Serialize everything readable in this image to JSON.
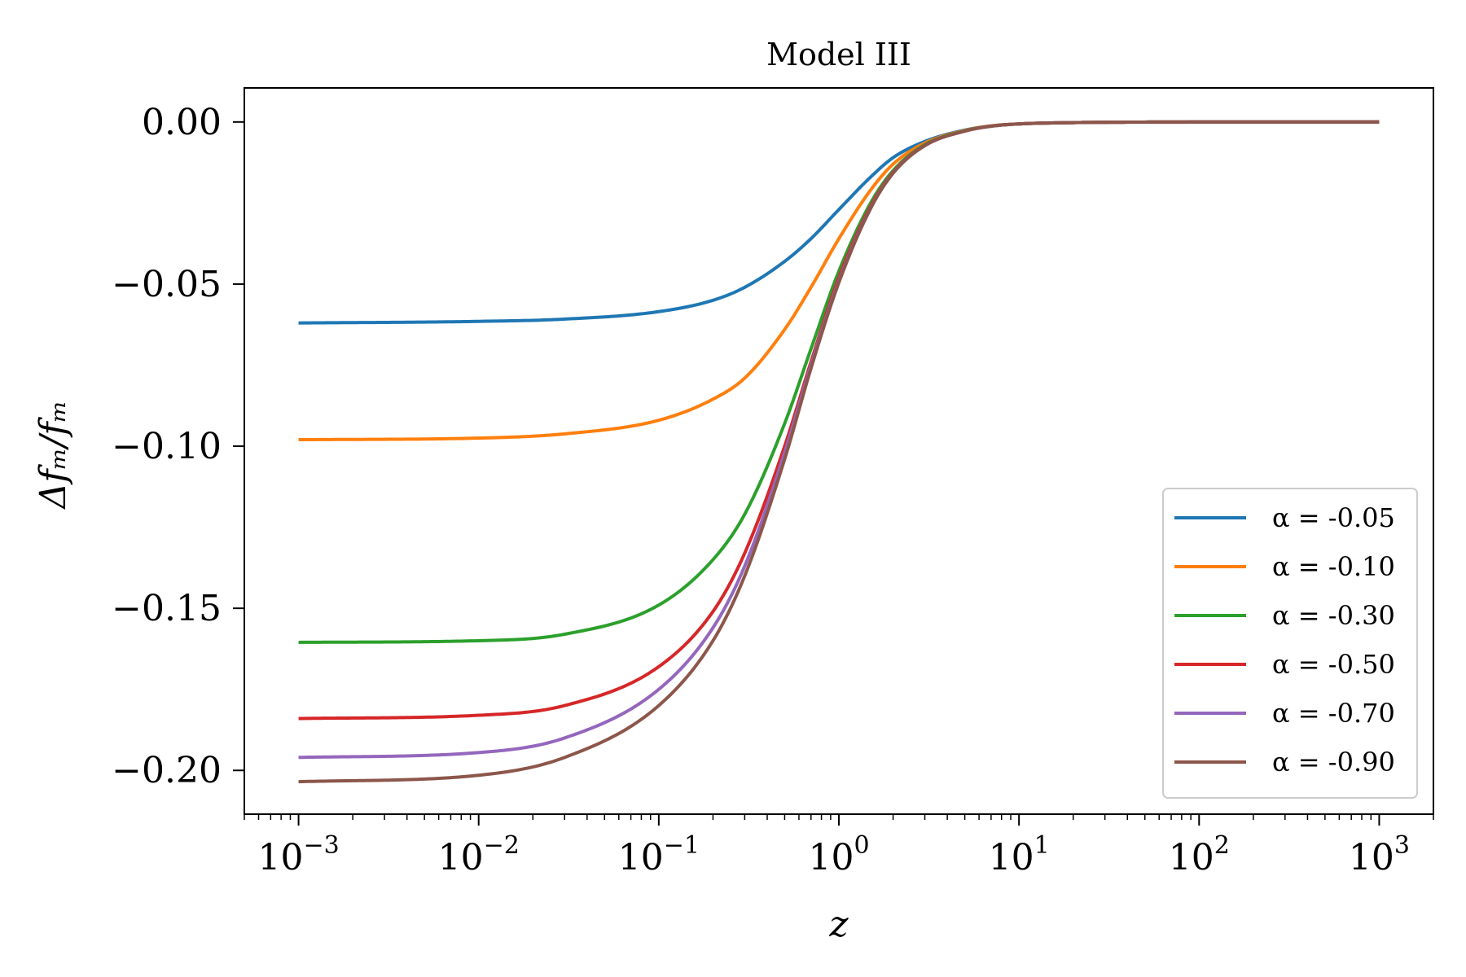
{
  "chart_data": {
    "type": "line",
    "title": "Model III",
    "xlabel": "z",
    "ylabel": "Δfₘ/fₘ",
    "xscale": "log",
    "xlim": [
      0.0005,
      2000
    ],
    "ylim": [
      -0.2135,
      0.0105
    ],
    "x_ticks": [
      {
        "value": 0.001,
        "base": "10",
        "exp": "−3"
      },
      {
        "value": 0.01,
        "base": "10",
        "exp": "−2"
      },
      {
        "value": 0.1,
        "base": "10",
        "exp": "−1"
      },
      {
        "value": 1,
        "base": "10",
        "exp": "0"
      },
      {
        "value": 10,
        "base": "10",
        "exp": "1"
      },
      {
        "value": 100,
        "base": "10",
        "exp": "2"
      },
      {
        "value": 1000,
        "base": "10",
        "exp": "3"
      }
    ],
    "y_ticks": [
      {
        "value": 0.0,
        "label": "0.00"
      },
      {
        "value": -0.05,
        "label": "−0.05"
      },
      {
        "value": -0.1,
        "label": "−0.10"
      },
      {
        "value": -0.15,
        "label": "−0.15"
      },
      {
        "value": -0.2,
        "label": "−0.20"
      }
    ],
    "grid": false,
    "legend_position": "lower-right",
    "x": [
      0.001,
      0.01,
      0.03,
      0.1,
      0.2,
      0.3,
      0.5,
      0.7,
      1,
      1.5,
      2,
      3,
      5,
      7,
      10,
      20,
      30,
      100,
      1000
    ],
    "series": [
      {
        "name": "α = -0.05",
        "color": "#1f77b4",
        "values": [
          -0.062,
          -0.0615,
          -0.0608,
          -0.0585,
          -0.055,
          -0.051,
          -0.043,
          -0.036,
          -0.027,
          -0.017,
          -0.011,
          -0.006,
          -0.0025,
          -0.0012,
          -0.0006,
          -0.0002,
          -0.0001,
          0,
          0
        ]
      },
      {
        "name": "α = -0.10",
        "color": "#ff7f0e",
        "values": [
          -0.098,
          -0.0975,
          -0.0962,
          -0.092,
          -0.0855,
          -0.079,
          -0.064,
          -0.051,
          -0.036,
          -0.021,
          -0.013,
          -0.0065,
          -0.0026,
          -0.0012,
          -0.0006,
          -0.0002,
          -0.0001,
          0,
          0
        ]
      },
      {
        "name": "α = -0.30",
        "color": "#2ca02c",
        "values": [
          -0.1605,
          -0.16,
          -0.158,
          -0.149,
          -0.135,
          -0.121,
          -0.093,
          -0.07,
          -0.046,
          -0.025,
          -0.015,
          -0.007,
          -0.0027,
          -0.0013,
          -0.0006,
          -0.0002,
          -0.0001,
          0,
          0
        ]
      },
      {
        "name": "α = -0.50",
        "color": "#d62728",
        "values": [
          -0.184,
          -0.183,
          -0.18,
          -0.168,
          -0.151,
          -0.133,
          -0.1,
          -0.074,
          -0.048,
          -0.026,
          -0.0155,
          -0.0072,
          -0.0028,
          -0.0013,
          -0.0006,
          -0.0002,
          -0.0001,
          0,
          0
        ]
      },
      {
        "name": "α = -0.70",
        "color": "#9467bd",
        "values": [
          -0.196,
          -0.1945,
          -0.19,
          -0.175,
          -0.156,
          -0.137,
          -0.102,
          -0.075,
          -0.049,
          -0.0265,
          -0.0157,
          -0.0073,
          -0.0028,
          -0.0013,
          -0.0006,
          -0.0002,
          -0.0001,
          0,
          0
        ]
      },
      {
        "name": "α = -0.90",
        "color": "#8c564b",
        "values": [
          -0.2035,
          -0.2015,
          -0.196,
          -0.18,
          -0.16,
          -0.14,
          -0.104,
          -0.076,
          -0.0495,
          -0.0267,
          -0.0158,
          -0.0073,
          -0.0028,
          -0.0013,
          -0.0006,
          -0.0002,
          -0.0001,
          0,
          0
        ]
      }
    ]
  }
}
